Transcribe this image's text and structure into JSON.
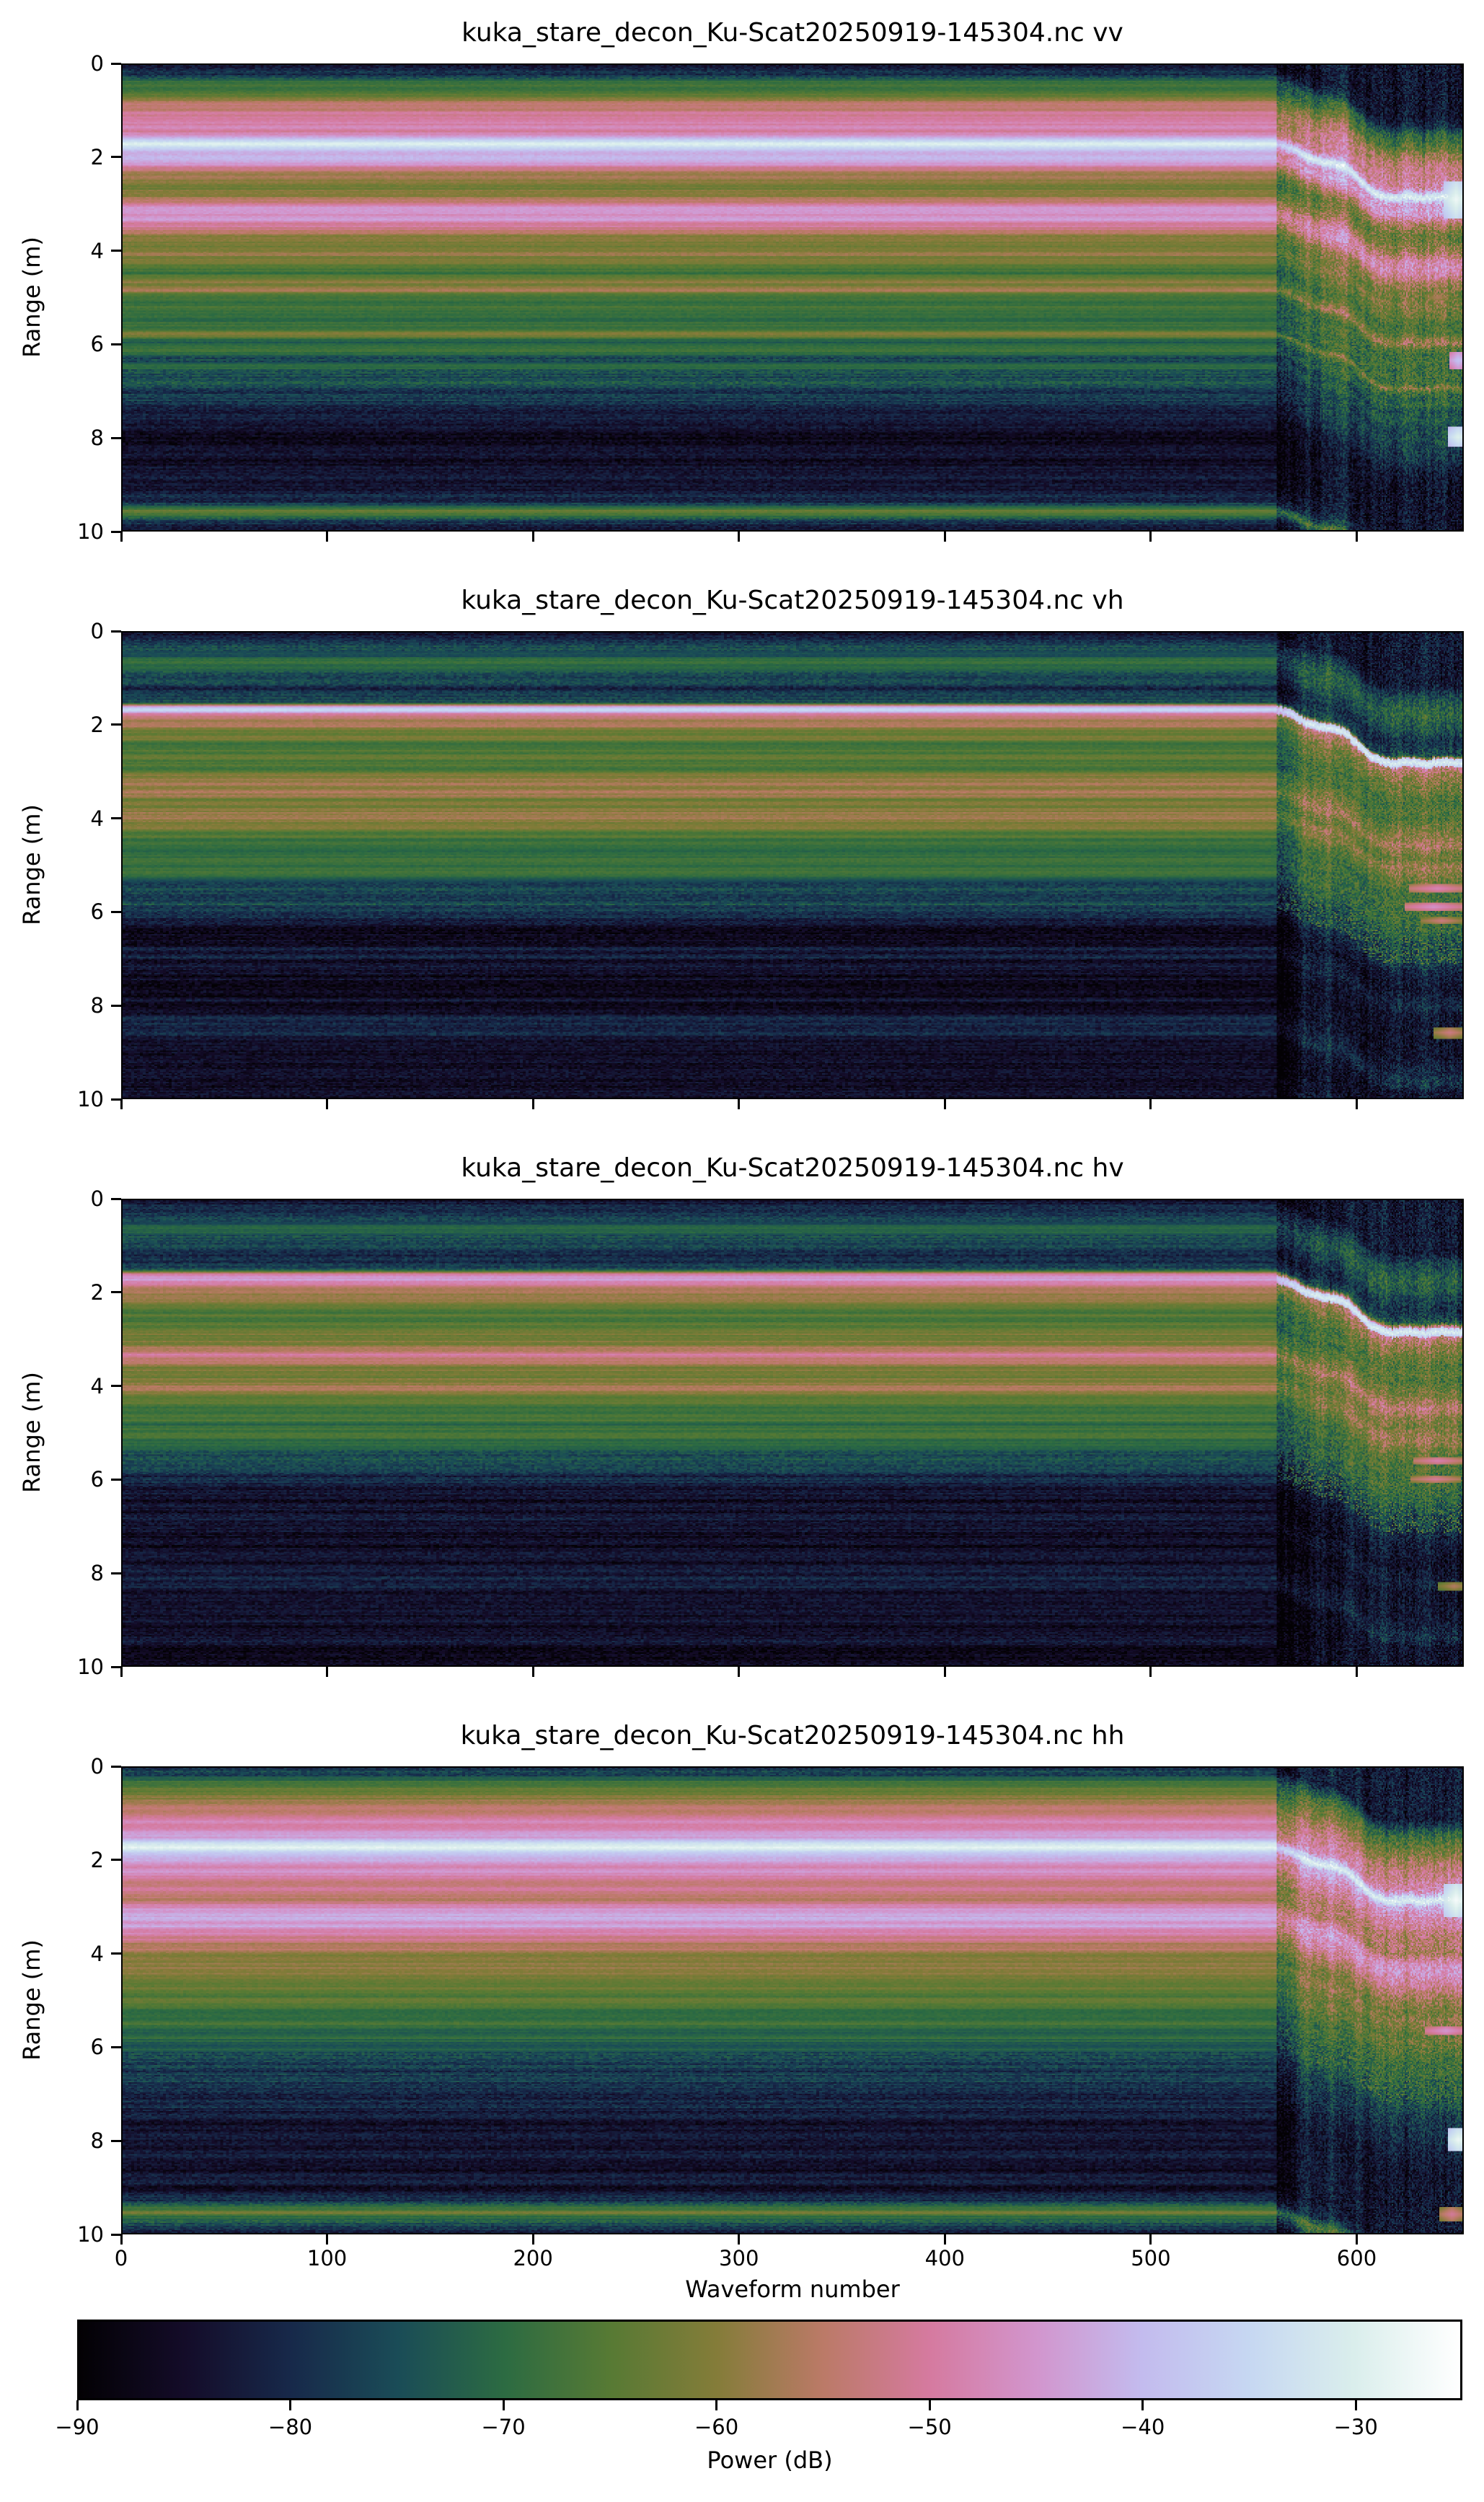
{
  "shared": {
    "xlabel": "Waveform number",
    "ylabel": "Range (m)",
    "x_ticks": [
      "0",
      "100",
      "200",
      "300",
      "400",
      "500",
      "600"
    ],
    "x_ticks_values": [
      0,
      100,
      200,
      300,
      400,
      500,
      600
    ],
    "y_ticks": [
      "0",
      "2",
      "4",
      "6",
      "8",
      "10"
    ],
    "y_ticks_values": [
      0,
      2,
      4,
      6,
      8,
      10
    ]
  },
  "colorbar": {
    "label": "Power (dB)",
    "ticks": [
      "−90",
      "−80",
      "−70",
      "−60",
      "−50",
      "−40",
      "−30"
    ],
    "tick_values": [
      -90,
      -80,
      -70,
      -60,
      -50,
      -40,
      -30
    ],
    "vmin": -90,
    "vmax": -25,
    "stops": [
      {
        "v": -90,
        "c": "#030104"
      },
      {
        "v": -85,
        "c": "#140c29"
      },
      {
        "v": -80,
        "c": "#17294a"
      },
      {
        "v": -75,
        "c": "#1a4c57"
      },
      {
        "v": -70,
        "c": "#2c6b42"
      },
      {
        "v": -65,
        "c": "#577a34"
      },
      {
        "v": -60,
        "c": "#847c39"
      },
      {
        "v": -55,
        "c": "#bb7a67"
      },
      {
        "v": -50,
        "c": "#d57a9f"
      },
      {
        "v": -45,
        "c": "#d295cd"
      },
      {
        "v": -40,
        "c": "#c3bbee"
      },
      {
        "v": -35,
        "c": "#c6d7f2"
      },
      {
        "v": -30,
        "c": "#daeeec"
      },
      {
        "v": -25,
        "c": "#ffffff"
      }
    ]
  },
  "chart_data": [
    {
      "type": "heatmap",
      "title": "kuka_stare_decon_Ku-Scat20250919-145304.nc vv",
      "polarization": "vv",
      "x_label": "Waveform number",
      "y_label": "Range (m)",
      "value_label": "Power (dB)",
      "x_range": [
        0,
        652
      ],
      "y_range": [
        0,
        10
      ],
      "value_range": [
        -90,
        -25
      ],
      "stare_end_waveform": 562,
      "surface_range_m": 1.7,
      "range_profile_db": [
        [
          0,
          -84
        ],
        [
          0.2,
          -79
        ],
        [
          0.35,
          -70
        ],
        [
          0.5,
          -67
        ],
        [
          0.65,
          -63
        ],
        [
          0.8,
          -57
        ],
        [
          0.95,
          -53
        ],
        [
          1.1,
          -50
        ],
        [
          1.3,
          -49
        ],
        [
          1.5,
          -47
        ],
        [
          1.62,
          -36
        ],
        [
          1.7,
          -28
        ],
        [
          1.78,
          -35
        ],
        [
          1.88,
          -42
        ],
        [
          2.0,
          -40
        ],
        [
          2.1,
          -43
        ],
        [
          2.2,
          -49
        ],
        [
          2.3,
          -55
        ],
        [
          2.45,
          -60
        ],
        [
          2.6,
          -62
        ],
        [
          2.75,
          -59
        ],
        [
          2.9,
          -55
        ],
        [
          3.0,
          -50
        ],
        [
          3.12,
          -46
        ],
        [
          3.28,
          -45
        ],
        [
          3.42,
          -49
        ],
        [
          3.55,
          -55
        ],
        [
          3.7,
          -59
        ],
        [
          3.85,
          -61
        ],
        [
          4.0,
          -59
        ],
        [
          4.15,
          -61
        ],
        [
          4.3,
          -63
        ],
        [
          4.45,
          -67
        ],
        [
          4.6,
          -65
        ],
        [
          4.75,
          -60
        ],
        [
          4.85,
          -55
        ],
        [
          4.95,
          -64
        ],
        [
          5.1,
          -69
        ],
        [
          5.25,
          -67
        ],
        [
          5.4,
          -69
        ],
        [
          5.55,
          -67
        ],
        [
          5.7,
          -69
        ],
        [
          5.8,
          -58
        ],
        [
          5.9,
          -68
        ],
        [
          6.0,
          -71
        ],
        [
          6.15,
          -69
        ],
        [
          6.3,
          -74
        ],
        [
          6.5,
          -72
        ],
        [
          6.7,
          -76
        ],
        [
          6.9,
          -75
        ],
        [
          7.1,
          -77
        ],
        [
          7.35,
          -79
        ],
        [
          7.6,
          -83
        ],
        [
          8.0,
          -85
        ],
        [
          8.6,
          -85
        ],
        [
          9.0,
          -84
        ],
        [
          9.25,
          -82
        ],
        [
          9.45,
          -76
        ],
        [
          9.58,
          -63
        ],
        [
          9.68,
          -70
        ],
        [
          9.8,
          -78
        ],
        [
          10,
          -84
        ]
      ],
      "shift_profile_m": [
        [
          562,
          0
        ],
        [
          569,
          0.1
        ],
        [
          576,
          0.28
        ],
        [
          583,
          0.38
        ],
        [
          590,
          0.42
        ],
        [
          596,
          0.52
        ],
        [
          602,
          0.78
        ],
        [
          607,
          1.0
        ],
        [
          612,
          1.1
        ],
        [
          618,
          1.17
        ],
        [
          626,
          1.13
        ],
        [
          634,
          1.18
        ],
        [
          642,
          1.12
        ],
        [
          652,
          1.16
        ]
      ],
      "bright_blobs": [
        [
          649,
          2.9,
          6,
          0.4,
          -27
        ],
        [
          650,
          6.35,
          4,
          0.18,
          -38
        ],
        [
          650,
          8.0,
          5,
          0.22,
          -29
        ],
        [
          640,
          5.0,
          6,
          0.1,
          -55
        ]
      ]
    },
    {
      "type": "heatmap",
      "title": "kuka_stare_decon_Ku-Scat20250919-145304.nc vh",
      "polarization": "vh",
      "x_label": "Waveform number",
      "y_label": "Range (m)",
      "value_label": "Power (dB)",
      "x_range": [
        0,
        652
      ],
      "y_range": [
        0,
        10
      ],
      "value_range": [
        -90,
        -25
      ],
      "stare_end_waveform": 562,
      "surface_range_m": 1.66,
      "range_profile_db": [
        [
          0,
          -84
        ],
        [
          0.15,
          -79
        ],
        [
          0.3,
          -75
        ],
        [
          0.45,
          -72
        ],
        [
          0.6,
          -70
        ],
        [
          0.75,
          -72
        ],
        [
          0.9,
          -74
        ],
        [
          1.05,
          -77
        ],
        [
          1.2,
          -80
        ],
        [
          1.35,
          -78
        ],
        [
          1.5,
          -76
        ],
        [
          1.6,
          -40
        ],
        [
          1.67,
          -33
        ],
        [
          1.74,
          -48
        ],
        [
          1.82,
          -54
        ],
        [
          1.95,
          -57
        ],
        [
          2.1,
          -61
        ],
        [
          2.25,
          -62
        ],
        [
          2.4,
          -65
        ],
        [
          2.55,
          -67
        ],
        [
          2.7,
          -65
        ],
        [
          2.85,
          -67
        ],
        [
          3.0,
          -63
        ],
        [
          3.15,
          -61
        ],
        [
          3.3,
          -58
        ],
        [
          3.45,
          -55
        ],
        [
          3.6,
          -61
        ],
        [
          3.75,
          -62
        ],
        [
          3.9,
          -57
        ],
        [
          4.05,
          -60
        ],
        [
          4.2,
          -63
        ],
        [
          4.35,
          -66
        ],
        [
          4.5,
          -69
        ],
        [
          4.65,
          -67
        ],
        [
          4.8,
          -69
        ],
        [
          5.0,
          -68
        ],
        [
          5.15,
          -70
        ],
        [
          5.3,
          -72
        ],
        [
          5.5,
          -75
        ],
        [
          5.7,
          -77
        ],
        [
          5.85,
          -76
        ],
        [
          6.0,
          -79
        ],
        [
          6.2,
          -83
        ],
        [
          6.5,
          -85
        ],
        [
          6.9,
          -81
        ],
        [
          7.05,
          -84
        ],
        [
          7.5,
          -86
        ],
        [
          8.0,
          -85
        ],
        [
          8.55,
          -79
        ],
        [
          8.7,
          -84
        ],
        [
          9.1,
          -86
        ],
        [
          9.5,
          -85
        ],
        [
          9.7,
          -83
        ],
        [
          10,
          -86
        ]
      ],
      "shift_profile_m": [
        [
          562,
          0
        ],
        [
          569,
          0.1
        ],
        [
          576,
          0.28
        ],
        [
          583,
          0.38
        ],
        [
          590,
          0.42
        ],
        [
          596,
          0.52
        ],
        [
          602,
          0.78
        ],
        [
          607,
          1.0
        ],
        [
          612,
          1.1
        ],
        [
          618,
          1.17
        ],
        [
          626,
          1.13
        ],
        [
          634,
          1.18
        ],
        [
          642,
          1.12
        ],
        [
          652,
          1.16
        ]
      ],
      "bright_blobs": [
        [
          640,
          5.5,
          14,
          0.09,
          -47
        ],
        [
          638,
          5.9,
          14,
          0.09,
          -45
        ],
        [
          642,
          6.2,
          10,
          0.08,
          -52
        ],
        [
          646,
          8.6,
          8,
          0.12,
          -52
        ]
      ]
    },
    {
      "type": "heatmap",
      "title": "kuka_stare_decon_Ku-Scat20250919-145304.nc hv",
      "polarization": "hv",
      "x_label": "Waveform number",
      "y_label": "Range (m)",
      "value_label": "Power (dB)",
      "x_range": [
        0,
        652
      ],
      "y_range": [
        0,
        10
      ],
      "value_range": [
        -90,
        -25
      ],
      "stare_end_waveform": 562,
      "surface_range_m": 1.7,
      "range_profile_db": [
        [
          0,
          -84
        ],
        [
          0.15,
          -79
        ],
        [
          0.3,
          -76
        ],
        [
          0.45,
          -73
        ],
        [
          0.6,
          -71
        ],
        [
          0.75,
          -73
        ],
        [
          0.9,
          -75
        ],
        [
          1.05,
          -78
        ],
        [
          1.2,
          -80
        ],
        [
          1.35,
          -78
        ],
        [
          1.5,
          -73
        ],
        [
          1.6,
          -46
        ],
        [
          1.7,
          -42
        ],
        [
          1.78,
          -50
        ],
        [
          1.88,
          -54
        ],
        [
          2.0,
          -57
        ],
        [
          2.15,
          -61
        ],
        [
          2.3,
          -63
        ],
        [
          2.45,
          -66
        ],
        [
          2.6,
          -64
        ],
        [
          2.75,
          -67
        ],
        [
          2.9,
          -63
        ],
        [
          3.05,
          -61
        ],
        [
          3.2,
          -57
        ],
        [
          3.32,
          -52
        ],
        [
          3.45,
          -56
        ],
        [
          3.6,
          -60
        ],
        [
          3.75,
          -61
        ],
        [
          3.9,
          -58
        ],
        [
          4.05,
          -57
        ],
        [
          4.2,
          -61
        ],
        [
          4.35,
          -64
        ],
        [
          4.5,
          -67
        ],
        [
          4.65,
          -66
        ],
        [
          4.85,
          -69
        ],
        [
          5.05,
          -68
        ],
        [
          5.25,
          -71
        ],
        [
          5.45,
          -74
        ],
        [
          5.65,
          -77
        ],
        [
          5.85,
          -79
        ],
        [
          6.05,
          -81
        ],
        [
          6.3,
          -84
        ],
        [
          6.7,
          -86
        ],
        [
          7.1,
          -83
        ],
        [
          7.3,
          -86
        ],
        [
          7.8,
          -85
        ],
        [
          8.3,
          -80
        ],
        [
          8.45,
          -85
        ],
        [
          9.0,
          -86
        ],
        [
          9.5,
          -85
        ],
        [
          10,
          -86
        ]
      ],
      "shift_profile_m": [
        [
          562,
          0
        ],
        [
          569,
          0.1
        ],
        [
          576,
          0.28
        ],
        [
          583,
          0.38
        ],
        [
          590,
          0.42
        ],
        [
          596,
          0.52
        ],
        [
          602,
          0.78
        ],
        [
          607,
          1.0
        ],
        [
          612,
          1.1
        ],
        [
          618,
          1.17
        ],
        [
          626,
          1.13
        ],
        [
          634,
          1.18
        ],
        [
          642,
          1.12
        ],
        [
          652,
          1.16
        ]
      ],
      "bright_blobs": [
        [
          640,
          5.6,
          12,
          0.09,
          -48
        ],
        [
          639,
          6.0,
          12,
          0.08,
          -50
        ],
        [
          648,
          8.3,
          8,
          0.1,
          -55
        ]
      ]
    },
    {
      "type": "heatmap",
      "title": "kuka_stare_decon_Ku-Scat20250919-145304.nc hh",
      "polarization": "hh",
      "x_label": "Waveform number",
      "y_label": "Range (m)",
      "value_label": "Power (dB)",
      "x_range": [
        0,
        652
      ],
      "y_range": [
        0,
        10
      ],
      "value_range": [
        -90,
        -25
      ],
      "stare_end_waveform": 562,
      "surface_range_m": 1.72,
      "range_profile_db": [
        [
          0,
          -82
        ],
        [
          0.15,
          -75
        ],
        [
          0.3,
          -68
        ],
        [
          0.45,
          -64
        ],
        [
          0.6,
          -61
        ],
        [
          0.75,
          -58
        ],
        [
          0.9,
          -54
        ],
        [
          1.05,
          -51
        ],
        [
          1.2,
          -49
        ],
        [
          1.35,
          -47
        ],
        [
          1.5,
          -45
        ],
        [
          1.62,
          -33
        ],
        [
          1.72,
          -27
        ],
        [
          1.82,
          -37
        ],
        [
          1.95,
          -41
        ],
        [
          2.1,
          -45
        ],
        [
          2.25,
          -47
        ],
        [
          2.4,
          -51
        ],
        [
          2.55,
          -53
        ],
        [
          2.7,
          -52
        ],
        [
          2.85,
          -54
        ],
        [
          3.0,
          -47
        ],
        [
          3.1,
          -43
        ],
        [
          3.25,
          -42
        ],
        [
          3.4,
          -45
        ],
        [
          3.55,
          -48
        ],
        [
          3.7,
          -52
        ],
        [
          3.85,
          -56
        ],
        [
          4.0,
          -59
        ],
        [
          4.15,
          -60
        ],
        [
          4.3,
          -57
        ],
        [
          4.45,
          -60
        ],
        [
          4.6,
          -62
        ],
        [
          4.75,
          -61
        ],
        [
          4.9,
          -63
        ],
        [
          5.05,
          -65
        ],
        [
          5.2,
          -68
        ],
        [
          5.35,
          -67
        ],
        [
          5.5,
          -69
        ],
        [
          5.7,
          -71
        ],
        [
          5.9,
          -72
        ],
        [
          6.1,
          -73
        ],
        [
          6.3,
          -76
        ],
        [
          6.6,
          -78
        ],
        [
          6.9,
          -80
        ],
        [
          7.2,
          -82
        ],
        [
          7.6,
          -84
        ],
        [
          8.0,
          -84
        ],
        [
          8.5,
          -83
        ],
        [
          9.0,
          -84
        ],
        [
          9.3,
          -80
        ],
        [
          9.45,
          -71
        ],
        [
          9.55,
          -63
        ],
        [
          9.65,
          -69
        ],
        [
          9.8,
          -76
        ],
        [
          10,
          -83
        ]
      ],
      "shift_profile_m": [
        [
          562,
          0
        ],
        [
          569,
          0.1
        ],
        [
          576,
          0.28
        ],
        [
          583,
          0.38
        ],
        [
          590,
          0.42
        ],
        [
          596,
          0.52
        ],
        [
          602,
          0.78
        ],
        [
          607,
          1.0
        ],
        [
          612,
          1.1
        ],
        [
          618,
          1.17
        ],
        [
          626,
          1.13
        ],
        [
          634,
          1.18
        ],
        [
          642,
          1.12
        ],
        [
          652,
          1.16
        ]
      ],
      "bright_blobs": [
        [
          649,
          2.85,
          6,
          0.35,
          -26
        ],
        [
          650,
          8.0,
          5,
          0.25,
          -27
        ],
        [
          644,
          5.65,
          10,
          0.1,
          -44
        ],
        [
          647,
          9.6,
          6,
          0.15,
          -50
        ]
      ]
    }
  ]
}
